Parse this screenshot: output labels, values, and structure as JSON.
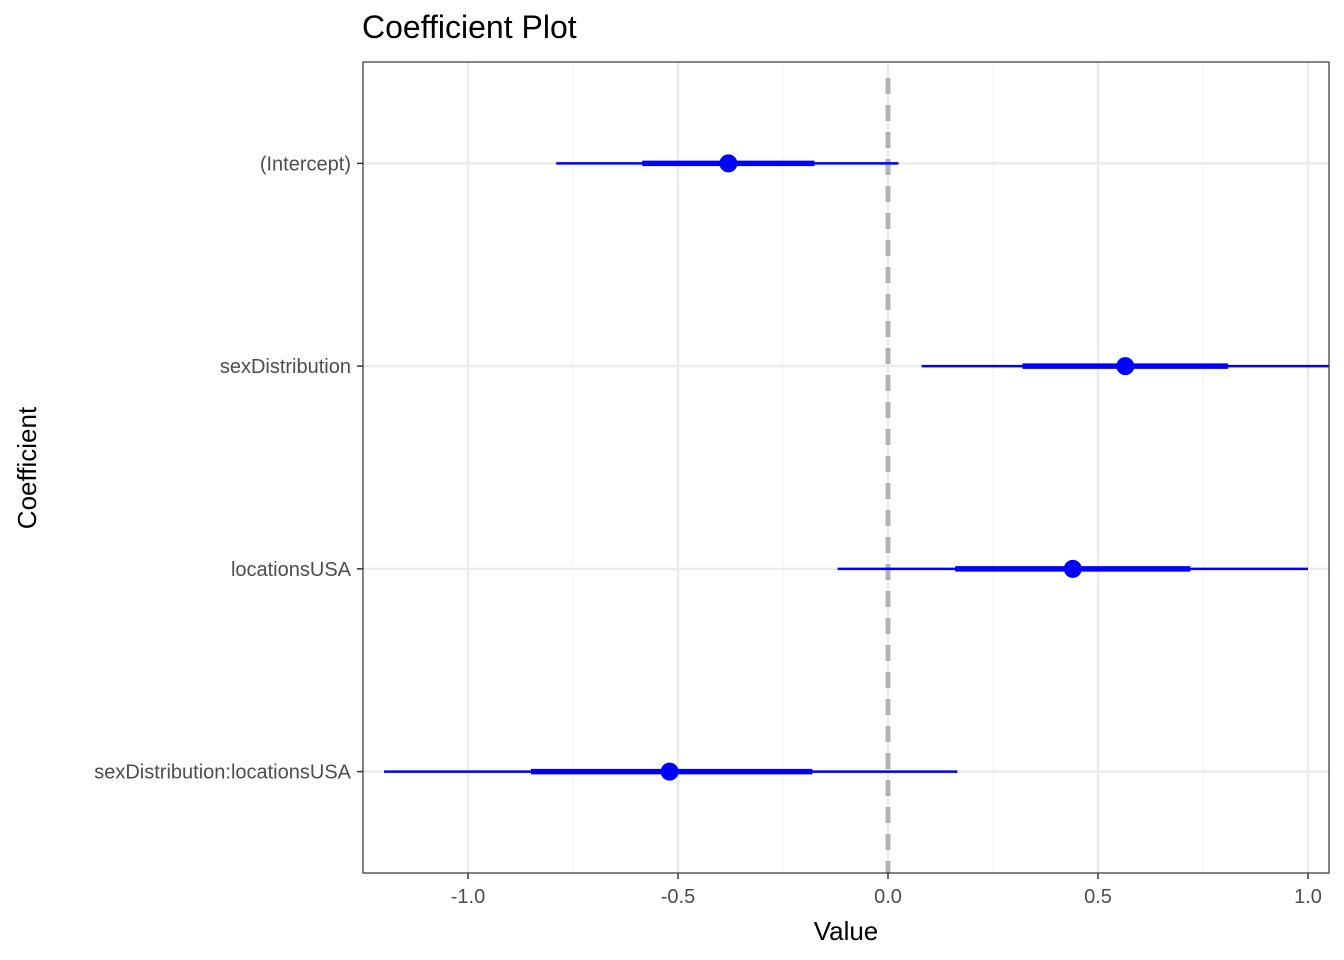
{
  "chart_data": {
    "type": "coefficient-plot",
    "title": "Coefficient Plot",
    "xlabel": "Value",
    "ylabel": "Coefficient",
    "xlim": [
      -1.25,
      1.05
    ],
    "x_ticks": [
      -1.0,
      -0.5,
      0.0,
      0.5,
      1.0
    ],
    "x_tick_labels": [
      "-1.0",
      "-0.5",
      "0.0",
      "0.5",
      "1.0"
    ],
    "reference_line": 0,
    "grid": true,
    "colors": {
      "point": "#0000ff",
      "interval": "#0000ff",
      "reference_line": "#b3b3b3",
      "grid_major": "#ebebeb",
      "grid_minor": "#f2f2f2",
      "panel_border": "#333333"
    },
    "coefficients": [
      {
        "name": "sexDistribution:locationsUSA",
        "value": -0.52,
        "inner": [
          -0.85,
          -0.18
        ],
        "outer": [
          -1.2,
          0.165
        ]
      },
      {
        "name": "locationsUSA",
        "value": 0.44,
        "inner": [
          0.16,
          0.72
        ],
        "outer": [
          -0.12,
          1.0
        ]
      },
      {
        "name": "sexDistribution",
        "value": 0.565,
        "inner": [
          0.32,
          0.81
        ],
        "outer": [
          0.08,
          1.05
        ]
      },
      {
        "name": "(Intercept)",
        "value": -0.38,
        "inner": [
          -0.585,
          -0.175
        ],
        "outer": [
          -0.79,
          0.025
        ]
      }
    ]
  }
}
